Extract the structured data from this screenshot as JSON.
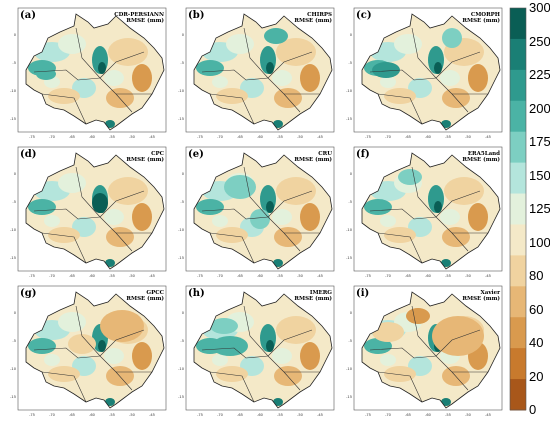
{
  "panels": [
    {
      "label": "(a)",
      "title_line1": "CDR-PERSIANN",
      "title_line2": "RMSE (mm)"
    },
    {
      "label": "(b)",
      "title_line1": "CHIRPS",
      "title_line2": "RMSE (mm)"
    },
    {
      "label": "(c)",
      "title_line1": "CMORPH",
      "title_line2": "RMSE (mm)"
    },
    {
      "label": "(d)",
      "title_line1": "CPC",
      "title_line2": "RMSE (mm)"
    },
    {
      "label": "(e)",
      "title_line1": "CRU",
      "title_line2": "RMSE (mm)"
    },
    {
      "label": "(f)",
      "title_line1": "ERA5Land",
      "title_line2": "RMSE (mm)"
    },
    {
      "label": "(g)",
      "title_line1": "GPCC",
      "title_line2": "RMSE (mm)"
    },
    {
      "label": "(h)",
      "title_line1": "IMERG",
      "title_line2": "RMSE (mm)"
    },
    {
      "label": "(i)",
      "title_line1": "Xavier",
      "title_line2": "RMSE (mm)"
    }
  ],
  "axes": {
    "x_ticks": [
      "-75",
      "-70",
      "-65",
      "-60",
      "-55",
      "-50",
      "-45"
    ],
    "y_ticks": [
      "0",
      "-5",
      "-10",
      "-15"
    ]
  },
  "colorbar": {
    "ticks": [
      "300",
      "250",
      "225",
      "200",
      "175",
      "150",
      "125",
      "100",
      "80",
      "60",
      "40",
      "20",
      "0"
    ],
    "colors": [
      "#0a5e55",
      "#1a7f75",
      "#2f9a8e",
      "#4bb3a5",
      "#7dcfc2",
      "#b4e5dc",
      "#e3f1dc",
      "#f4e9c8",
      "#f0d3a0",
      "#e7b776",
      "#d99a4e",
      "#c87a2d",
      "#a8571a"
    ]
  }
}
